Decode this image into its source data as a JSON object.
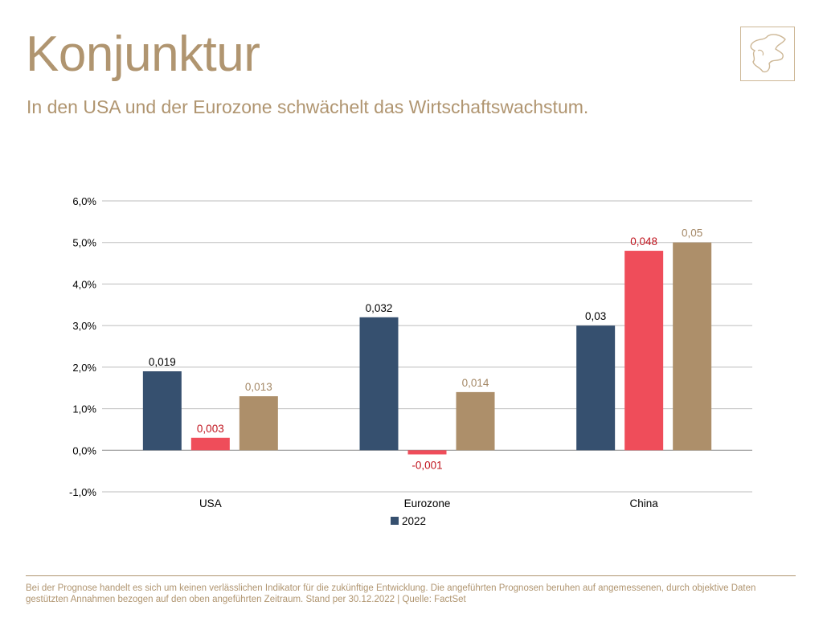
{
  "page": {
    "title": "Konjunktur",
    "subtitle": "In den USA und der Eurozone schwächelt das Wirtschaftswachstum.",
    "footer": "Bei der Prognose handelt es sich um keinen verlässlichen Indikator für die zukünftige Entwicklung. Die angeführten Prognosen beruhen auf angemessenen, durch objektive Daten gestützten Annahmen bezogen auf den oben angeführten Zeitraum. Stand per 30.12.2022 | Quelle: FactSet",
    "accent_color": "#b09570",
    "logo_icon": "map-outline-icon"
  },
  "chart_data": {
    "type": "bar",
    "categories": [
      "USA",
      "Eurozone",
      "China"
    ],
    "series": [
      {
        "name": "2022",
        "values": [
          0.019,
          0.032,
          0.03
        ],
        "labels": [
          "0,019",
          "0,032",
          "0,03"
        ],
        "color": "#36506f",
        "label_color": "#000000"
      },
      {
        "values": [
          0.003,
          -0.001,
          0.048
        ],
        "labels": [
          "0,003",
          "-0,001",
          "0,048"
        ],
        "color": "#ef4d5a",
        "label_color": "#c0141e"
      },
      {
        "values": [
          0.013,
          0.014,
          0.05
        ],
        "labels": [
          "0,013",
          "0,014",
          "0,05"
        ],
        "color": "#ad8f6a",
        "label_color": "#a48866"
      }
    ],
    "ylim": [
      -0.01,
      0.06
    ],
    "yticks": [
      0.06,
      0.05,
      0.04,
      0.03,
      0.02,
      0.01,
      0.0,
      -0.01
    ],
    "ytick_labels": [
      "6,0%",
      "5,0%",
      "4,0%",
      "3,0%",
      "2,0%",
      "1,0%",
      "0,0%",
      "-1,0%"
    ],
    "grid": true,
    "legend_placement": "bottom-center",
    "xlabel": "",
    "ylabel": ""
  }
}
